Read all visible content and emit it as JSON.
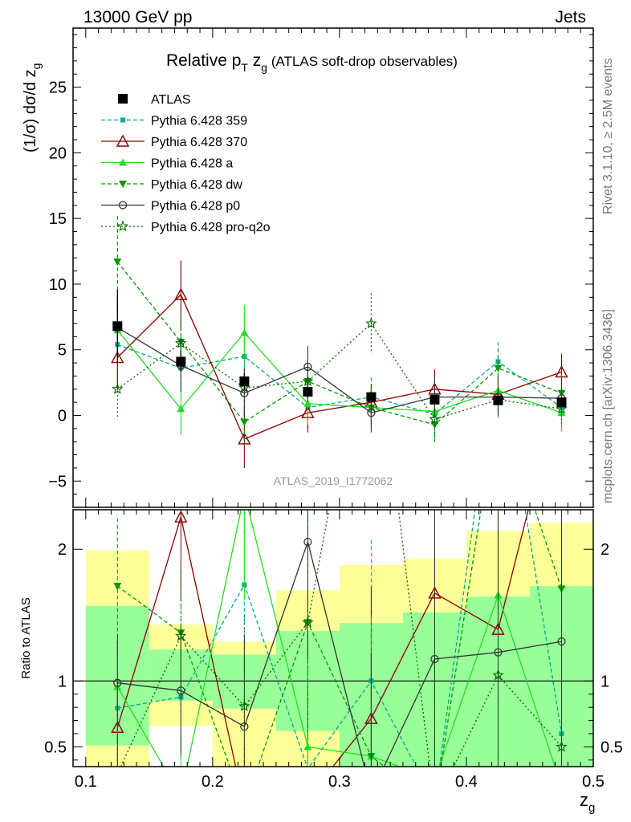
{
  "header": {
    "left": "13000 GeV pp",
    "right": "Jets"
  },
  "side_labels": {
    "rivet": "Rivet 3.1.10, ≥ 2.5M events",
    "mcplots": "mcplots.cern.ch [arXiv:1306.3436]"
  },
  "chart_data": {
    "type": "line",
    "title_parts": {
      "main": "Relative p",
      "sub": "T",
      "mid": " z",
      "sub2": "g",
      "rest": " (ATLAS soft-drop observables)"
    },
    "ylabel": "(1/σ) dσ/d z",
    "ylabel_sub": "g",
    "xlabel": "z",
    "xlabel_sub": "g",
    "watermark": "ATLAS_2019_I1772062",
    "xlim": [
      0.09,
      0.5
    ],
    "ylim": [
      -7,
      29.5
    ],
    "yticks": [
      -5,
      0,
      5,
      10,
      15,
      20,
      25
    ],
    "xticks": [
      0.1,
      0.2,
      0.3,
      0.4,
      0.5
    ],
    "xtick_labels": [
      "0.1",
      "0.2",
      "0.3",
      "0.4",
      "0.5"
    ],
    "legend_position": "top-left",
    "x": [
      0.125,
      0.175,
      0.225,
      0.275,
      0.325,
      0.375,
      0.425,
      0.475
    ],
    "bin_edges": [
      0.1,
      0.15,
      0.2,
      0.25,
      0.3,
      0.35,
      0.4,
      0.45,
      0.5
    ],
    "data": {
      "name": "ATLAS",
      "values": [
        6.8,
        4.1,
        2.6,
        1.8,
        1.4,
        1.2,
        1.15,
        1.0
      ],
      "errors": [
        2.8,
        0.8,
        0.6,
        0.5,
        0.4,
        0.3,
        0.25,
        0.2
      ]
    },
    "series": [
      {
        "name": "Pythia 6.428 359",
        "color": "#00a88f",
        "dash": "5,3",
        "marker": "square-small",
        "values": [
          5.4,
          3.6,
          4.5,
          0.6,
          1.4,
          0.1,
          4.1,
          0.6
        ],
        "errors": [
          3.0,
          2.0,
          1.7,
          1.6,
          1.5,
          1.4,
          1.5,
          1.3
        ]
      },
      {
        "name": "Pythia 6.428 370",
        "color": "#8b0000",
        "dash": "",
        "marker": "triangle-open",
        "values": [
          4.4,
          9.2,
          -1.8,
          0.2,
          1.0,
          2.0,
          1.6,
          3.3
        ],
        "errors": [
          2.5,
          2.6,
          2.2,
          1.5,
          1.4,
          1.5,
          1.4,
          1.4
        ]
      },
      {
        "name": "Pythia 6.428 a",
        "color": "#22dd22",
        "dash": "",
        "marker": "triangle-filled",
        "values": [
          6.5,
          0.5,
          6.3,
          0.9,
          0.6,
          0.3,
          1.9,
          0.2
        ],
        "errors": [
          2.4,
          2.0,
          2.1,
          1.6,
          1.5,
          1.4,
          1.5,
          1.4
        ]
      },
      {
        "name": "Pythia 6.428 dw",
        "color": "#009900",
        "dash": "5,3",
        "marker": "triangle-down-filled",
        "values": [
          11.7,
          5.6,
          -0.5,
          2.6,
          0.6,
          -0.7,
          3.6,
          1.7
        ],
        "errors": [
          3.5,
          2.1,
          1.8,
          1.6,
          1.5,
          1.4,
          1.5,
          1.5
        ]
      },
      {
        "name": "Pythia 6.428 p0",
        "color": "#333333",
        "dash": "",
        "marker": "circle-open",
        "values": [
          6.7,
          3.8,
          1.7,
          3.7,
          0.2,
          1.4,
          1.4,
          1.3
        ],
        "errors": [
          2.5,
          2.0,
          1.8,
          1.6,
          1.5,
          1.5,
          1.5,
          1.4
        ]
      },
      {
        "name": "Pythia 6.428 pro-q2o",
        "color": "#006600",
        "dash": "2,3",
        "marker": "star",
        "values": [
          2.0,
          5.5,
          2.1,
          2.6,
          7.0,
          -0.3,
          1.2,
          0.5
        ],
        "errors": [
          2.3,
          2.0,
          1.8,
          1.6,
          2.3,
          1.5,
          1.4,
          1.4
        ]
      }
    ],
    "ratio": {
      "ylabel": "Ratio to ATLAS",
      "ylim": [
        0.35,
        2.3
      ],
      "yticks": [
        0.5,
        1,
        2
      ],
      "ytick_labels": [
        "0.5",
        "1",
        "2"
      ],
      "band_inner": [
        [
          0.51,
          1.57
        ],
        [
          0.85,
          1.24
        ],
        [
          0.79,
          1.2
        ],
        [
          0.62,
          1.38
        ],
        [
          0.35,
          1.44
        ],
        [
          0.35,
          1.52
        ],
        [
          0.35,
          1.64
        ],
        [
          0.35,
          1.72
        ]
      ],
      "band_outer": [
        [
          0.35,
          1.99
        ],
        [
          0.66,
          1.43
        ],
        [
          0.35,
          1.3
        ],
        [
          0.35,
          1.69
        ],
        [
          0.35,
          1.88
        ],
        [
          0.35,
          1.93
        ],
        [
          0.35,
          2.14
        ],
        [
          0.35,
          2.2
        ]
      ]
    }
  }
}
